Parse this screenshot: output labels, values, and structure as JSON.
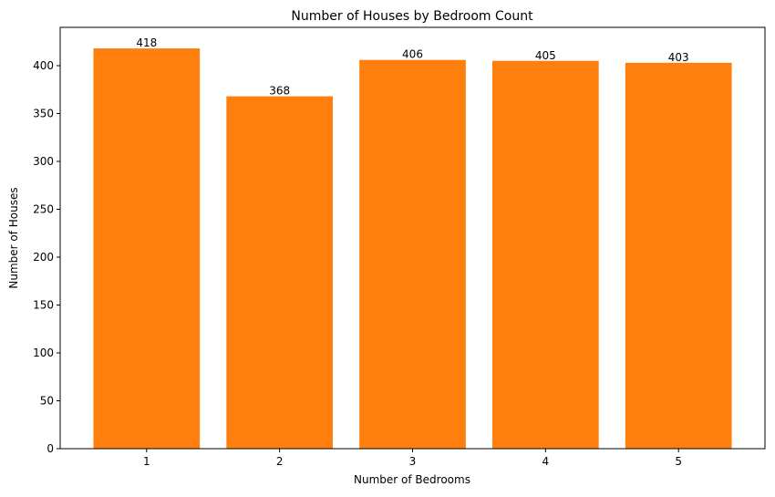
{
  "chart_data": {
    "type": "bar",
    "title": "Number of Houses by Bedroom Count",
    "xlabel": "Number of Bedrooms",
    "ylabel": "Number of Houses",
    "categories": [
      "1",
      "2",
      "3",
      "4",
      "5"
    ],
    "values": [
      418,
      368,
      406,
      405,
      403
    ],
    "data_labels": [
      "418",
      "368",
      "406",
      "405",
      "403"
    ],
    "ylim": [
      0,
      440
    ],
    "yticks": [
      0,
      50,
      100,
      150,
      200,
      250,
      300,
      350,
      400
    ],
    "bar_color": "#ff7f0e",
    "grid": false,
    "legend": false
  }
}
